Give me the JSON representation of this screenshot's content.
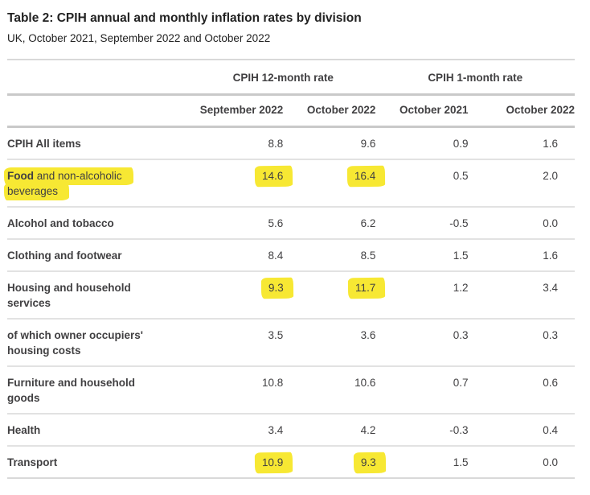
{
  "title": "Table 2: CPIH annual and monthly inflation rates by division",
  "subtitle": "UK, October 2021, September 2022 and October 2022",
  "colors": {
    "highlight": "#f7e833",
    "text": "#414042",
    "heading": "#222222",
    "border_strong": "#c9c9c9",
    "border_light": "#e2e2e2"
  },
  "chart_data": {
    "type": "table",
    "title": "Table 2: CPIH annual and monthly inflation rates by division",
    "subtitle": "UK, October 2021, September 2022 and October 2022",
    "group_headers": [
      {
        "label": "CPIH 12-month rate",
        "span": 2
      },
      {
        "label": "CPIH 1-month rate",
        "span": 2
      }
    ],
    "column_headers": [
      "September 2022",
      "October 2022",
      "October 2021",
      "October 2022"
    ],
    "rows": [
      {
        "label": "CPIH All items",
        "values": [
          "8.8",
          "9.6",
          "0.9",
          "1.6"
        ],
        "highlighted_values": [],
        "label_highlighted": false
      },
      {
        "label": "Food and non-alcoholic beverages",
        "bold_prefix": "Food",
        "values": [
          "14.6",
          "16.4",
          "0.5",
          "2.0"
        ],
        "highlighted_values": [
          0,
          1
        ],
        "label_highlighted": true
      },
      {
        "label": "Alcohol and tobacco",
        "values": [
          "5.6",
          "6.2",
          "-0.5",
          "0.0"
        ],
        "highlighted_values": [],
        "label_highlighted": false
      },
      {
        "label": "Clothing and footwear",
        "values": [
          "8.4",
          "8.5",
          "1.5",
          "1.6"
        ],
        "highlighted_values": [],
        "label_highlighted": false
      },
      {
        "label": "Housing and household services",
        "values": [
          "9.3",
          "11.7",
          "1.2",
          "3.4"
        ],
        "highlighted_values": [
          0,
          1
        ],
        "label_highlighted": false
      },
      {
        "label": "of which owner occupiers' housing costs",
        "values": [
          "3.5",
          "3.6",
          "0.3",
          "0.3"
        ],
        "highlighted_values": [],
        "label_highlighted": false
      },
      {
        "label": "Furniture and household goods",
        "values": [
          "10.8",
          "10.6",
          "0.7",
          "0.6"
        ],
        "highlighted_values": [],
        "label_highlighted": false
      },
      {
        "label": "Health",
        "values": [
          "3.4",
          "4.2",
          "-0.3",
          "0.4"
        ],
        "highlighted_values": [],
        "label_highlighted": false
      },
      {
        "label": "Transport",
        "values": [
          "10.9",
          "9.3",
          "1.5",
          "0.0"
        ],
        "highlighted_values": [
          0,
          1
        ],
        "label_highlighted": false
      }
    ]
  }
}
